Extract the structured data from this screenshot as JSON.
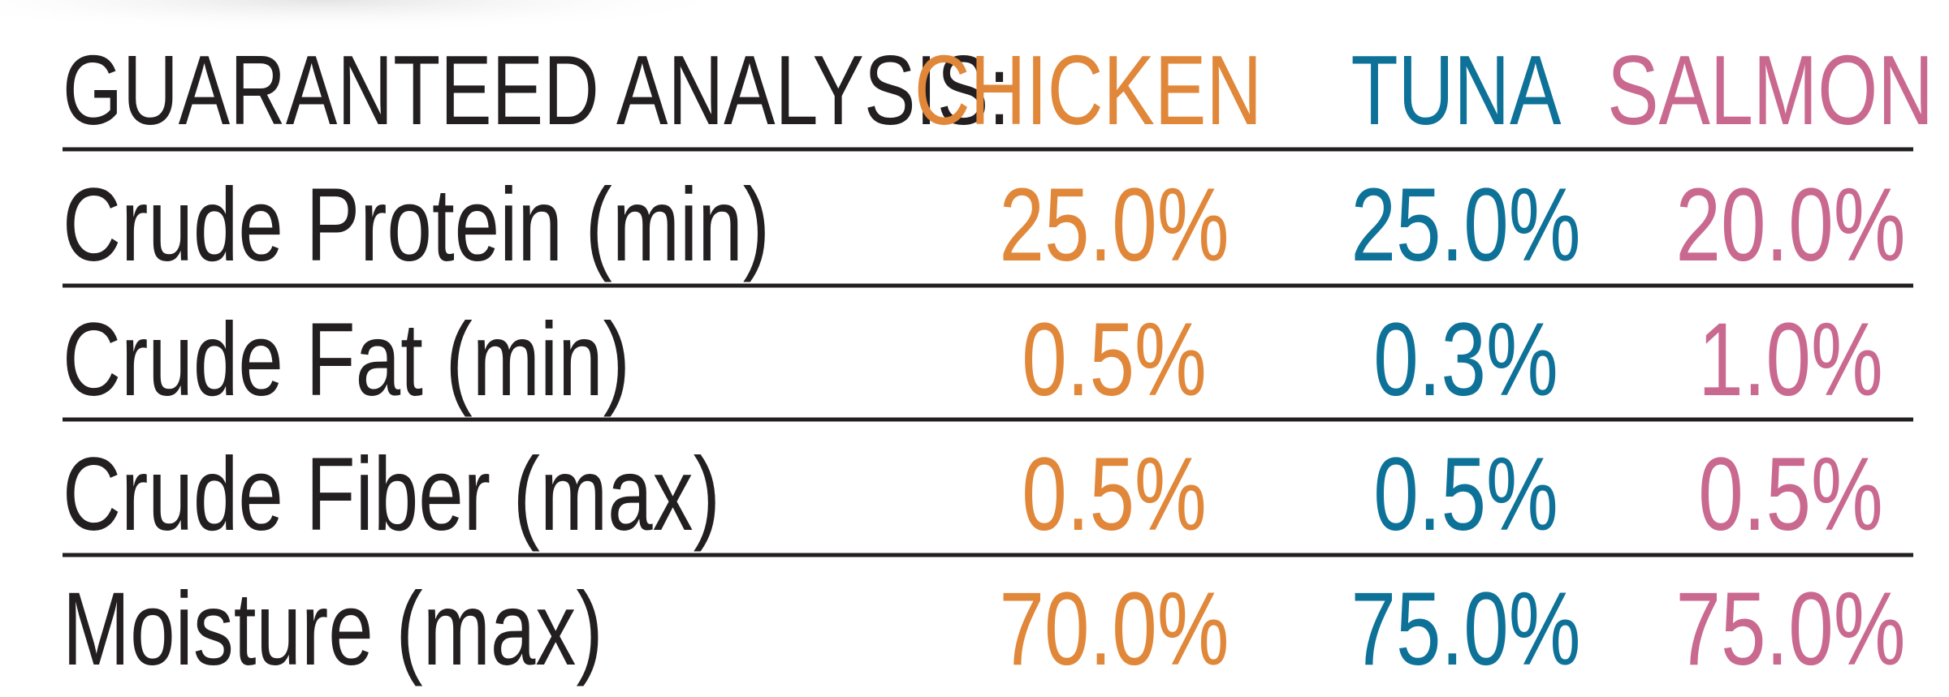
{
  "header": {
    "title": "GUARANTEED ANALYSIS:",
    "columns": [
      "CHICKEN",
      "TUNA",
      "SALMON"
    ]
  },
  "table": {
    "rows": [
      [
        "Crude Protein (min)",
        "25.0%",
        "25.0%",
        "20.0%"
      ],
      [
        "Crude Fat (min)",
        "0.5%",
        "0.3%",
        "1.0%"
      ],
      [
        "Crude Fiber (max)",
        "0.5%",
        "0.5%",
        "0.5%"
      ],
      [
        "Moisture (max)",
        "70.0%",
        "75.0%",
        "75.0%"
      ]
    ]
  }
}
